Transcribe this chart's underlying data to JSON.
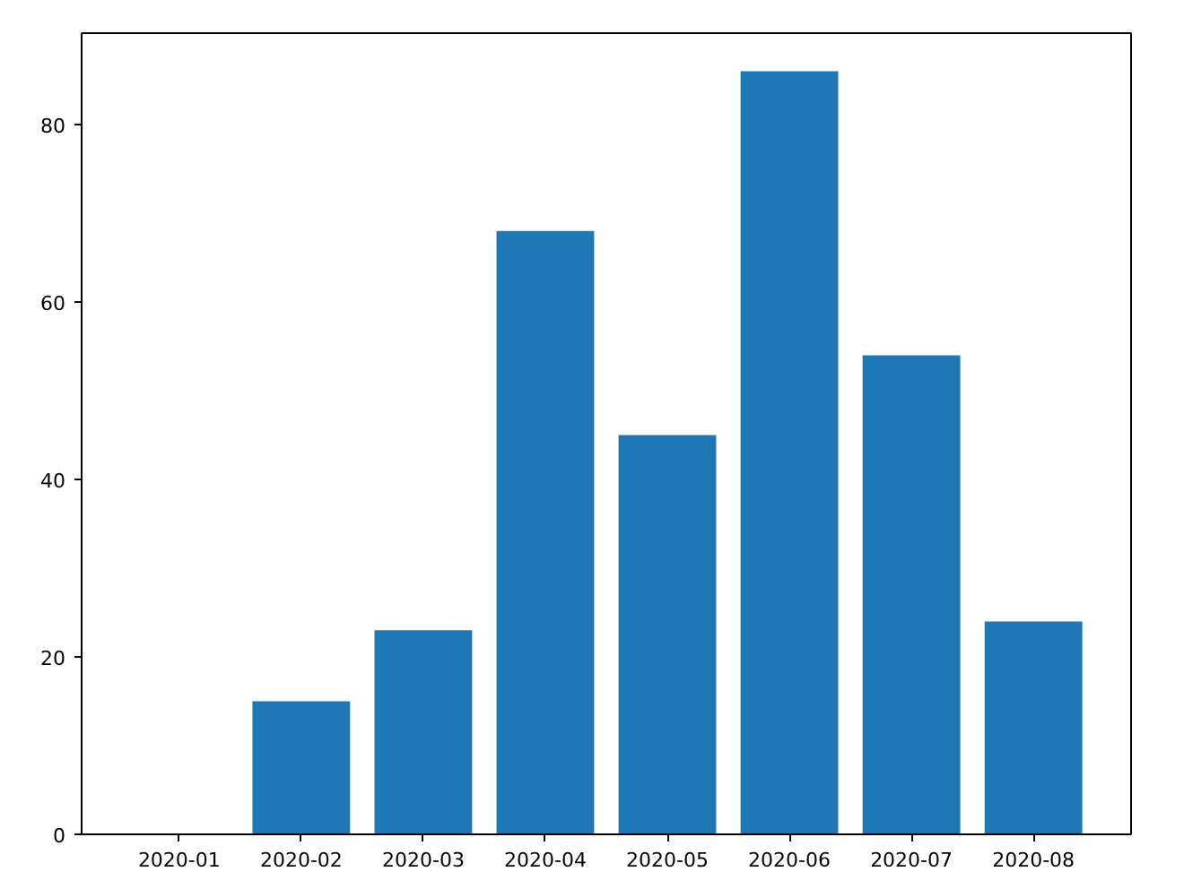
{
  "chart_data": {
    "type": "bar",
    "categories": [
      "2020-01",
      "2020-02",
      "2020-03",
      "2020-04",
      "2020-05",
      "2020-06",
      "2020-07",
      "2020-08"
    ],
    "values": [
      0,
      15,
      23,
      68,
      45,
      86,
      54,
      24
    ],
    "color": "#1f77b4",
    "ylim": [
      0,
      90.3
    ],
    "yticks": [
      0,
      20,
      40,
      60,
      80
    ],
    "grid": false
  }
}
